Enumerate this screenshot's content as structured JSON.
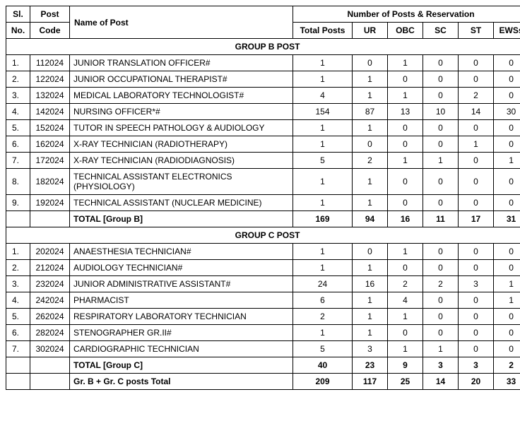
{
  "headers": {
    "sl_no_1": "Sl.",
    "sl_no_2": "No.",
    "post_code_1": "Post",
    "post_code_2": "Code",
    "name_of_post": "Name of Post",
    "reservation_title": "Number of Posts  & Reservation",
    "total_posts": "Total Posts",
    "ur": "UR",
    "obc": "OBC",
    "sc": "SC",
    "st": "ST",
    "ews": "EWSs"
  },
  "group_b_title": "GROUP B POST",
  "group_b_rows": [
    {
      "sl": "1.",
      "code": "112024",
      "name": "JUNIOR TRANSLATION OFFICER#",
      "total": "1",
      "ur": "0",
      "obc": "1",
      "sc": "0",
      "st": "0",
      "ews": "0"
    },
    {
      "sl": "2.",
      "code": "122024",
      "name": "JUNIOR OCCUPATIONAL THERAPIST#",
      "total": "1",
      "ur": "1",
      "obc": "0",
      "sc": "0",
      "st": "0",
      "ews": "0"
    },
    {
      "sl": "3.",
      "code": "132024",
      "name": "MEDICAL LABORATORY TECHNOLOGIST#",
      "total": "4",
      "ur": "1",
      "obc": "1",
      "sc": "0",
      "st": "2",
      "ews": "0"
    },
    {
      "sl": "4.",
      "code": "142024",
      "name": "NURSING OFFICER*#",
      "total": "154",
      "ur": "87",
      "obc": "13",
      "sc": "10",
      "st": "14",
      "ews": "30"
    },
    {
      "sl": "5.",
      "code": "152024",
      "name": "TUTOR IN SPEECH PATHOLOGY & AUDIOLOGY",
      "total": "1",
      "ur": "1",
      "obc": "0",
      "sc": "0",
      "st": "0",
      "ews": "0"
    },
    {
      "sl": "6.",
      "code": "162024",
      "name": "X-RAY TECHNICIAN (RADIOTHERAPY)",
      "total": "1",
      "ur": "0",
      "obc": "0",
      "sc": "0",
      "st": "1",
      "ews": "0"
    },
    {
      "sl": "7.",
      "code": "172024",
      "name": "X-RAY TECHNICIAN (RADIODIAGNOSIS)",
      "total": "5",
      "ur": "2",
      "obc": "1",
      "sc": "1",
      "st": "0",
      "ews": "1"
    },
    {
      "sl": "8.",
      "code": "182024",
      "name": "TECHNICAL  ASSISTANT ELECTRONICS (PHYSIOLOGY)",
      "total": "1",
      "ur": "1",
      "obc": "0",
      "sc": "0",
      "st": "0",
      "ews": "0"
    },
    {
      "sl": "9.",
      "code": "192024",
      "name": "TECHNICAL  ASSISTANT (NUCLEAR MEDICINE)",
      "total": "1",
      "ur": "1",
      "obc": "0",
      "sc": "0",
      "st": "0",
      "ews": "0"
    }
  ],
  "group_b_total": {
    "label": "TOTAL [Group B]",
    "total": "169",
    "ur": "94",
    "obc": "16",
    "sc": "11",
    "st": "17",
    "ews": "31"
  },
  "group_c_title": "GROUP C POST",
  "group_c_rows": [
    {
      "sl": "1.",
      "code": "202024",
      "name": "ANAESTHESIA TECHNICIAN#",
      "total": "1",
      "ur": "0",
      "obc": "1",
      "sc": "0",
      "st": "0",
      "ews": "0"
    },
    {
      "sl": "2.",
      "code": "212024",
      "name": "AUDIOLOGY TECHNICIAN#",
      "total": "1",
      "ur": "1",
      "obc": "0",
      "sc": "0",
      "st": "0",
      "ews": "0"
    },
    {
      "sl": "3.",
      "code": "232024",
      "name": "JUNIOR  ADMINISTRATIVE  ASSISTANT#",
      "total": "24",
      "ur": "16",
      "obc": "2",
      "sc": "2",
      "st": "3",
      "ews": "1"
    },
    {
      "sl": "4.",
      "code": "242024",
      "name": "PHARMACIST",
      "total": "6",
      "ur": "1",
      "obc": "4",
      "sc": "0",
      "st": "0",
      "ews": "1"
    },
    {
      "sl": "5.",
      "code": "262024",
      "name": "RESPIRATORY LABORATORY TECHNICIAN",
      "total": "2",
      "ur": "1",
      "obc": "1",
      "sc": "0",
      "st": "0",
      "ews": "0"
    },
    {
      "sl": "6.",
      "code": "282024",
      "name": "STENOGRAPHER GR.II#",
      "total": "1",
      "ur": "1",
      "obc": "0",
      "sc": "0",
      "st": "0",
      "ews": "0"
    },
    {
      "sl": "7.",
      "code": "302024",
      "name": "CARDIOGRAPHIC TECHNICIAN",
      "total": "5",
      "ur": "3",
      "obc": "1",
      "sc": "1",
      "st": "0",
      "ews": "0"
    }
  ],
  "group_c_total": {
    "label": "TOTAL [Group C]",
    "total": "40",
    "ur": "23",
    "obc": "9",
    "sc": "3",
    "st": "3",
    "ews": "2"
  },
  "grand_total": {
    "label": "Gr. B + Gr. C posts Total",
    "total": "209",
    "ur": "117",
    "obc": "25",
    "sc": "14",
    "st": "20",
    "ews": "33"
  }
}
